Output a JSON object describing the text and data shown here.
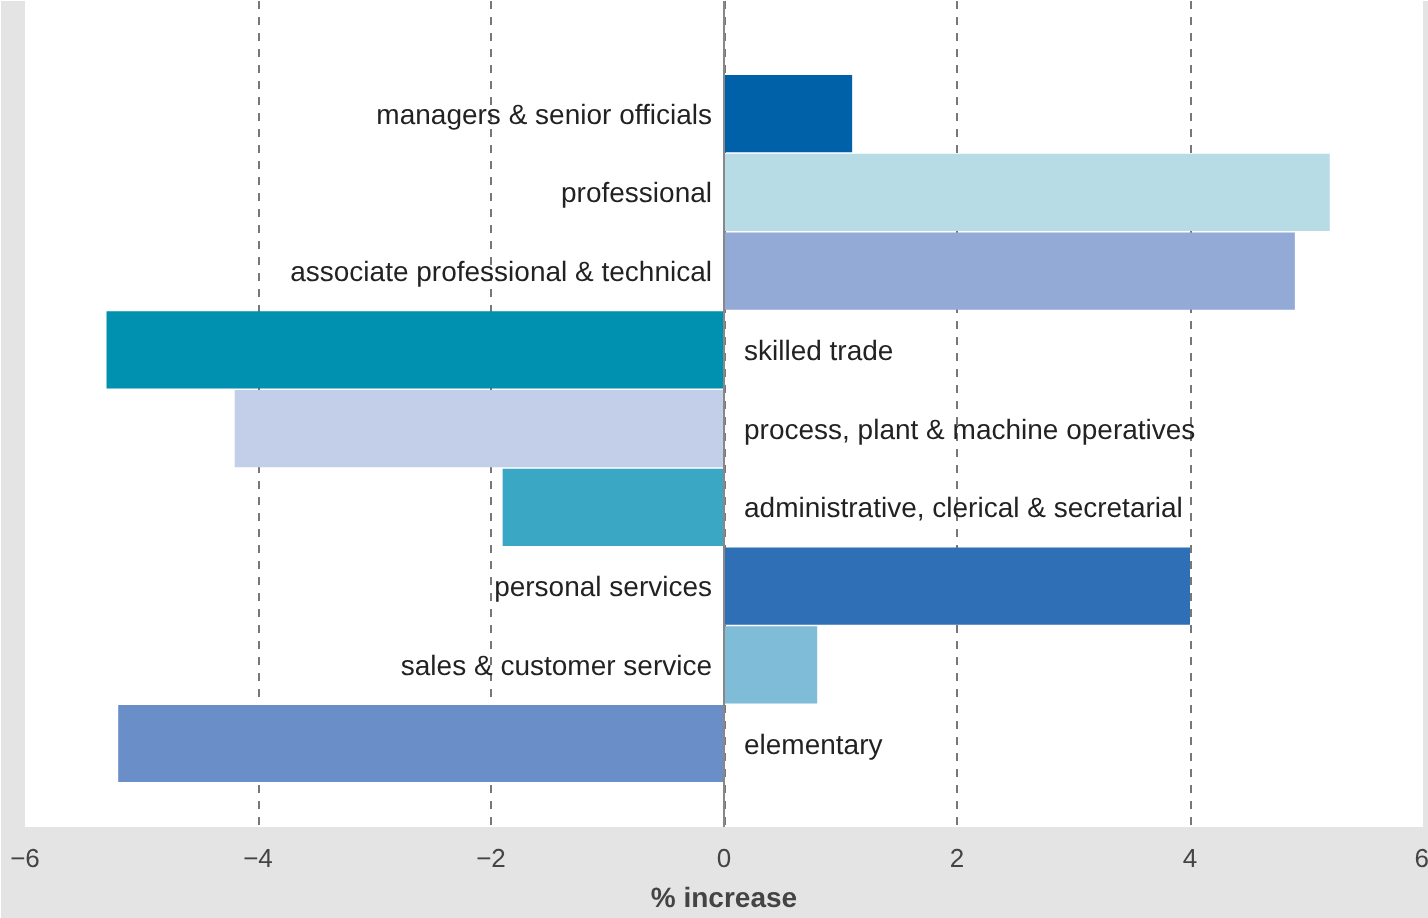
{
  "chart_data": {
    "type": "bar",
    "orientation": "horizontal",
    "xlabel": "% increase",
    "categories": [
      "managers & senior officials",
      "professional",
      "associate professional & technical",
      "skilled trade",
      "process, plant & machine operatives",
      "administrative, clerical & secretarial",
      "personal services",
      "sales & customer service",
      "elementary"
    ],
    "values": [
      1.1,
      5.2,
      4.9,
      -5.3,
      -4.2,
      -1.9,
      4.0,
      0.8,
      -5.2
    ],
    "colors": [
      "#0060a8",
      "#b8dce6",
      "#93a9d6",
      "#0090b0",
      "#c3cee8",
      "#3aa8c4",
      "#2f6fb6",
      "#7fbcd8",
      "#6a8ec8"
    ],
    "xlim": [
      -6,
      6
    ],
    "xticks": [
      {
        "value": -6,
        "label": "−6"
      },
      {
        "value": -4,
        "label": "−4"
      },
      {
        "value": -2,
        "label": "−2"
      },
      0,
      2,
      4,
      6
    ],
    "grid": "x"
  }
}
